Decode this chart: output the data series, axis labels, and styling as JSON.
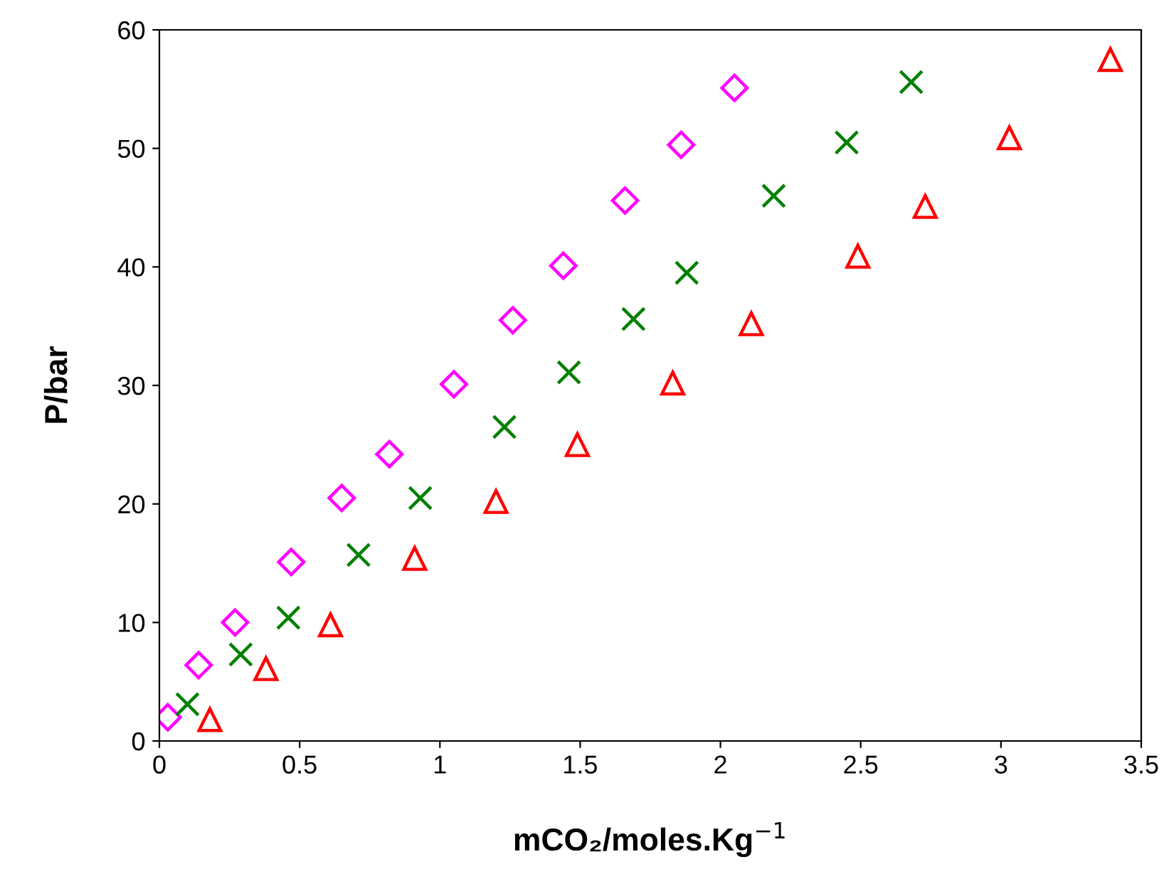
{
  "chart_data": {
    "type": "scatter",
    "xlabel": "mCO₂/moles.Kg$^{−1}$",
    "ylabel": "P/bar",
    "xlim": [
      0,
      3.5
    ],
    "ylim": [
      0,
      60
    ],
    "xticks": [
      0,
      0.5,
      1,
      1.5,
      2,
      2.5,
      3,
      3.5
    ],
    "yticks": [
      0,
      10,
      20,
      30,
      40,
      50,
      60
    ],
    "grid": false,
    "legend": false,
    "series": [
      {
        "color": "#ff00ff",
        "marker": "diamond",
        "x": [
          0.03,
          0.14,
          0.27,
          0.47,
          0.65,
          0.82,
          1.05,
          1.26,
          1.44,
          1.66,
          1.86,
          2.05
        ],
        "values": [
          2.0,
          6.4,
          10.0,
          15.1,
          20.5,
          24.2,
          30.1,
          35.5,
          40.1,
          45.6,
          50.3,
          55.1
        ]
      },
      {
        "color": "#008000",
        "marker": "cross",
        "x": [
          0.1,
          0.29,
          0.46,
          0.71,
          0.93,
          1.23,
          1.46,
          1.69,
          1.88,
          2.19,
          2.45,
          2.68
        ],
        "values": [
          3.1,
          7.3,
          10.4,
          15.7,
          20.5,
          26.5,
          31.1,
          35.6,
          39.5,
          46.0,
          50.5,
          55.6
        ]
      },
      {
        "color": "#ff0000",
        "marker": "triangle",
        "x": [
          0.18,
          0.38,
          0.61,
          0.91,
          1.2,
          1.49,
          1.83,
          2.11,
          2.49,
          2.73,
          3.03,
          3.39
        ],
        "values": [
          1.8,
          6.1,
          9.8,
          15.4,
          20.2,
          25.0,
          30.2,
          35.2,
          40.9,
          45.1,
          50.9,
          57.5
        ]
      }
    ]
  }
}
